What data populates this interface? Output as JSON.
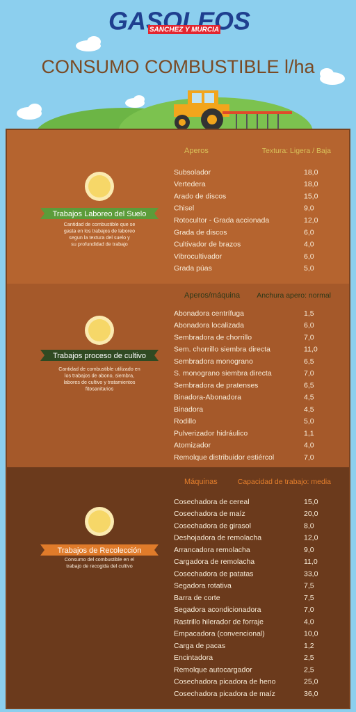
{
  "header": {
    "brand": "GASOLEOS",
    "brand_subtitle": "SANCHEZ Y MURCIA",
    "title": "CONSUMO COMBUSTIBLE l/ha"
  },
  "sections": [
    {
      "column_left": "Aperos",
      "column_right": "Textura: Ligera / Baja",
      "label": "Trabajos Laboreo del Suelo",
      "description": [
        "Cantidad de combustible que se",
        "gasta en los trabajos de laboreo",
        "segun la textura del suelo y",
        "su profundidad de trabajo"
      ],
      "rows": [
        [
          "Subsolador",
          "18,0"
        ],
        [
          "Vertedera",
          "18,0"
        ],
        [
          "Arado de discos",
          "15,0"
        ],
        [
          "Chisel",
          "9,0"
        ],
        [
          "Rotocultor - Grada accionada",
          "12,0"
        ],
        [
          "Grada de discos",
          "6,0"
        ],
        [
          "Cultivador de brazos",
          "4,0"
        ],
        [
          "Vibrocultivador",
          "6,0"
        ],
        [
          "Grada púas",
          "5,0"
        ]
      ]
    },
    {
      "column_left": "Aperos/máquina",
      "column_right": "Anchura apero: normal",
      "label": "Trabajos proceso de cultivo",
      "description": [
        "Cantidad de combustible utilizado en",
        "los trabajos de abono, siembra,",
        "labores de cultivo y tratamientos",
        "fitosanitarios"
      ],
      "rows": [
        [
          "Abonadora centrífuga",
          "1,5"
        ],
        [
          "Abonadora localizada",
          "6,0"
        ],
        [
          "Sembradora de chorrillo",
          "7,0"
        ],
        [
          "Sem. chorrillo siembra directa",
          "11,0"
        ],
        [
          "Sembradora monograno",
          "6,5"
        ],
        [
          "S. monograno siembra directa",
          "7,0"
        ],
        [
          "Sembradora de pratenses",
          "6,5"
        ],
        [
          "Binadora-Abonadora",
          "4,5"
        ],
        [
          "Binadora",
          "4,5"
        ],
        [
          "Rodillo",
          "5,0"
        ],
        [
          "Pulverizador hidráulico",
          "1,1"
        ],
        [
          "Atomizador",
          "4,0"
        ],
        [
          "Remolque distribuidor estiércol",
          "7,0"
        ]
      ]
    },
    {
      "column_left": "Máquinas",
      "column_right": "Capacidad de trabajo: media",
      "label": "Trabajos de Recolección",
      "description": [
        "Consumo del combustible en el",
        "trabajo de recogida del cultivo"
      ],
      "rows": [
        [
          "Cosechadora de cereal",
          "15,0"
        ],
        [
          "Cosechadora de maíz",
          "20,0"
        ],
        [
          "Cosechadora de girasol",
          "8,0"
        ],
        [
          "Deshojadora de remolacha",
          "12,0"
        ],
        [
          "Arrancadora remolacha",
          "9,0"
        ],
        [
          "Cargadora de remolacha",
          "11,0"
        ],
        [
          "Cosechadora de patatas",
          "33,0"
        ],
        [
          "Segadora rotativa",
          "7,5"
        ],
        [
          "Barra de corte",
          "7,5"
        ],
        [
          "Segadora acondicionadora",
          "7,0"
        ],
        [
          "Rastrillo hilerador de forraje",
          "4,0"
        ],
        [
          "Empacadora (convencional)",
          "10,0"
        ],
        [
          "Carga de pacas",
          "1,2"
        ],
        [
          "Encintadora",
          "2,5"
        ],
        [
          "Remolque autocargador",
          "2,5"
        ],
        [
          "Cosechadora picadora de heno",
          "25,0"
        ],
        [
          "Cosechadora picadora de maíz",
          "36,0"
        ]
      ]
    }
  ]
}
